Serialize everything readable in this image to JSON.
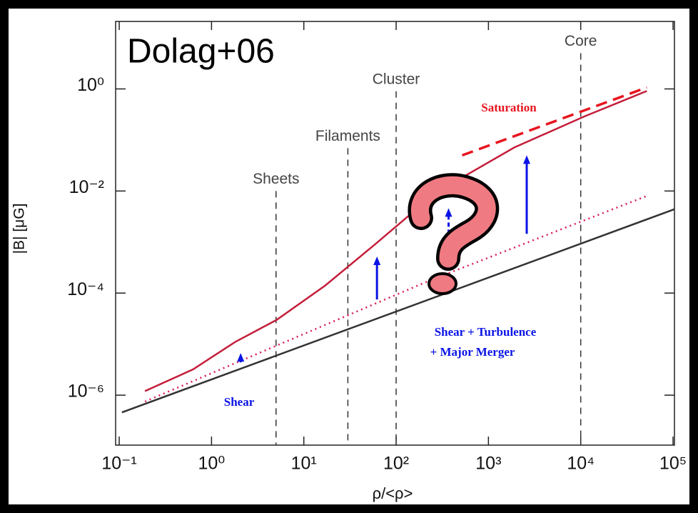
{
  "chart_data": {
    "type": "line",
    "xlabel": "ρ/<ρ>",
    "ylabel": "|B| [μG]",
    "log_x": true,
    "log_y": true,
    "xlim": [
      0.0914,
      103600
    ],
    "ylim": [
      1.05e-07,
      21
    ],
    "xticks": [
      {
        "value": 0.1,
        "label": "10⁻¹"
      },
      {
        "value": 1,
        "label": "10⁰"
      },
      {
        "value": 10,
        "label": "10¹"
      },
      {
        "value": 100,
        "label": "10²"
      },
      {
        "value": 1000,
        "label": "10³"
      },
      {
        "value": 10000,
        "label": "10⁴"
      },
      {
        "value": 100000,
        "label": "10⁵"
      }
    ],
    "yticks": [
      {
        "value": 1e-06,
        "label": "10⁻⁶"
      },
      {
        "value": 0.0001,
        "label": "10⁻⁴"
      },
      {
        "value": 0.01,
        "label": "10⁻²"
      },
      {
        "value": 1,
        "label": "10⁰"
      }
    ],
    "series": [
      {
        "color": "#333333",
        "style": "solid",
        "x": [
          0.107,
          103600
        ],
        "values": [
          4.6e-07,
          0.0044
        ]
      },
      {
        "color": "#c41e3a",
        "style": "solid",
        "x": [
          0.19,
          0.63,
          1.8,
          5.1,
          17,
          59,
          270,
          1900,
          11000,
          52000
        ],
        "values": [
          1.2e-06,
          3.2e-06,
          1.1e-05,
          3e-05,
          0.00014,
          0.0009,
          0.0093,
          0.071,
          0.29,
          0.91
        ]
      },
      {
        "color": "#d81b50",
        "style": "dotted",
        "x": [
          0.19,
          220,
          52000
        ],
        "values": [
          7.5e-07,
          0.00017,
          0.008
        ]
      },
      {
        "color": "#e8141e",
        "style": "dashed",
        "x": [
          520,
          52000
        ],
        "values": [
          0.05,
          1.07
        ]
      }
    ],
    "regions": [
      {
        "label": "Sheets",
        "x": 5,
        "ytop": 0.01
      },
      {
        "label": "Filaments",
        "x": 30,
        "ytop": 0.069
      },
      {
        "label": "Cluster",
        "x": 100,
        "ytop": 0.9
      },
      {
        "label": "Core",
        "x": 10000,
        "ytop": 5.0
      }
    ],
    "arrows": [
      {
        "x": 2.07,
        "from": 4.4e-06,
        "to": 6.7e-06
      },
      {
        "x": 62,
        "from": 7.5e-05,
        "to": 0.00052
      },
      {
        "x": 370,
        "from": 0.00055,
        "to": 0.0046
      },
      {
        "x": 2600,
        "from": 0.00145,
        "to": 0.05
      }
    ],
    "arrow_color": "#0a14e6",
    "annotations": [
      "Dolag+06",
      "Saturation",
      "Shear + Turbulence",
      "+ Major Merger",
      "Shear"
    ]
  }
}
